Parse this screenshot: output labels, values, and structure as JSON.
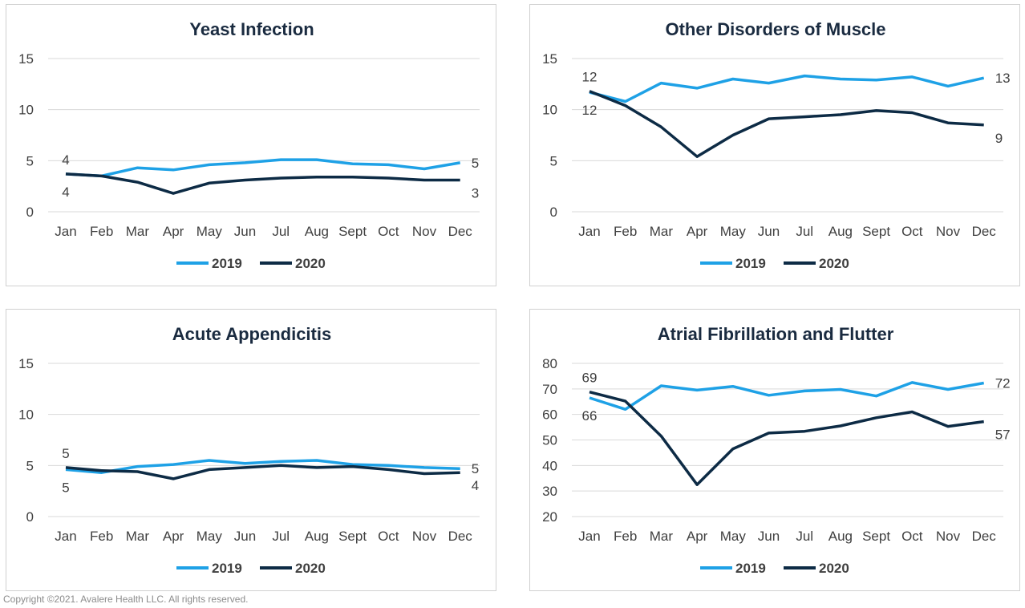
{
  "copyright": "Copyright ©2021. Avalere Health LLC. All rights reserved.",
  "colors": {
    "s2019": "#1ea1e6",
    "s2020": "#0d2b45",
    "grid": "#d9d9d9",
    "text": "#404040",
    "title": "#1a2b40"
  },
  "chart_data": [
    {
      "type": "line",
      "title": "Yeast Infection",
      "categories": [
        "Jan",
        "Feb",
        "Mar",
        "Apr",
        "May",
        "Jun",
        "Jul",
        "Aug",
        "Sept",
        "Oct",
        "Nov",
        "Dec"
      ],
      "ylim": [
        0,
        15
      ],
      "yticks": [
        "0",
        "5",
        "10",
        "15"
      ],
      "series": [
        {
          "name": "2019",
          "values": [
            3.7,
            3.5,
            4.3,
            4.1,
            4.6,
            4.8,
            5.1,
            5.1,
            4.7,
            4.6,
            4.2,
            4.8
          ]
        },
        {
          "name": "2020",
          "values": [
            3.7,
            3.5,
            2.9,
            1.8,
            2.8,
            3.1,
            3.3,
            3.4,
            3.4,
            3.3,
            3.1,
            3.1
          ]
        }
      ],
      "labels": {
        "2019_first": "4",
        "2019_last": "5",
        "2020_first": "4",
        "2020_last": "3"
      },
      "legend": "bottom"
    },
    {
      "type": "line",
      "title": "Other Disorders of Muscle",
      "categories": [
        "Jan",
        "Feb",
        "Mar",
        "Apr",
        "May",
        "Jun",
        "Jul",
        "Aug",
        "Sept",
        "Oct",
        "Nov",
        "Dec"
      ],
      "ylim": [
        0,
        15
      ],
      "yticks": [
        "0",
        "5",
        "10",
        "15"
      ],
      "series": [
        {
          "name": "2019",
          "values": [
            11.7,
            10.8,
            12.6,
            12.1,
            13.0,
            12.6,
            13.3,
            13.0,
            12.9,
            13.2,
            12.3,
            13.1
          ]
        },
        {
          "name": "2020",
          "values": [
            11.8,
            10.4,
            8.3,
            5.4,
            7.5,
            9.1,
            9.3,
            9.5,
            9.9,
            9.7,
            8.7,
            8.5
          ]
        }
      ],
      "labels": {
        "2019_first": "12",
        "2019_last": "13",
        "2020_first": "12",
        "2020_last": "9"
      },
      "legend": "bottom"
    },
    {
      "type": "line",
      "title": "Acute Appendicitis",
      "categories": [
        "Jan",
        "Feb",
        "Mar",
        "Apr",
        "May",
        "Jun",
        "Jul",
        "Aug",
        "Sept",
        "Oct",
        "Nov",
        "Dec"
      ],
      "ylim": [
        0,
        15
      ],
      "yticks": [
        "0",
        "5",
        "10",
        "15"
      ],
      "series": [
        {
          "name": "2019",
          "values": [
            4.6,
            4.3,
            4.9,
            5.1,
            5.5,
            5.2,
            5.4,
            5.5,
            5.1,
            5.0,
            4.8,
            4.7
          ]
        },
        {
          "name": "2020",
          "values": [
            4.8,
            4.5,
            4.4,
            3.7,
            4.6,
            4.8,
            5.0,
            4.8,
            4.9,
            4.6,
            4.2,
            4.3
          ]
        }
      ],
      "labels": {
        "2019_first": "5",
        "2019_last": "5",
        "2020_first": "5",
        "2020_last": "4"
      },
      "legend": "bottom"
    },
    {
      "type": "line",
      "title": "Atrial Fibrillation and Flutter",
      "categories": [
        "Jan",
        "Feb",
        "Mar",
        "Apr",
        "May",
        "Jun",
        "Jul",
        "Aug",
        "Sept",
        "Oct",
        "Nov",
        "Dec"
      ],
      "ylim": [
        20,
        80
      ],
      "yticks": [
        "20",
        "30",
        "40",
        "50",
        "60",
        "70",
        "80"
      ],
      "series": [
        {
          "name": "2019",
          "values": [
            66.5,
            62.0,
            71.2,
            69.5,
            71.0,
            67.5,
            69.2,
            69.8,
            67.2,
            72.5,
            69.8,
            72.3
          ]
        },
        {
          "name": "2020",
          "values": [
            68.8,
            65.2,
            51.5,
            32.5,
            46.5,
            52.7,
            53.4,
            55.5,
            58.7,
            61.0,
            55.3,
            57.2
          ]
        }
      ],
      "labels": {
        "2019_first": "66",
        "2019_last": "72",
        "2020_first": "69",
        "2020_last": "57"
      },
      "legend": "bottom"
    }
  ]
}
